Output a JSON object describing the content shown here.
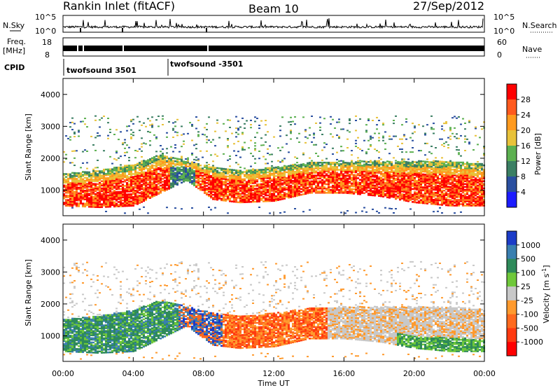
{
  "header": {
    "station": "Rankin Inlet (fitACF)",
    "beam": "Beam 10",
    "date": "27/Sep/2012"
  },
  "summary_panel": {
    "nsky_label": "N.Sky",
    "nsky_ticks": [
      "10^5",
      "10^0"
    ],
    "nsearch_label": "N.Search",
    "nsearch_ticks": [
      "10^5",
      "10^0"
    ],
    "freq_label": "Freq.",
    "freq_unit": "[MHz]",
    "freq_ticks": [
      "18",
      "8"
    ],
    "nave_label": "Nave",
    "nave_ticks": [
      "60",
      "0"
    ],
    "cpid_label": "CPID",
    "cpid_segments": [
      {
        "start_hour": 0.0,
        "label": "twofsound 3501"
      },
      {
        "start_hour": 6.0,
        "label": "twofsound -3501"
      }
    ]
  },
  "chart_data": [
    {
      "type": "heatmap",
      "quantity": "Power",
      "ylabel": "Slant Range [km]",
      "xlabel": "",
      "xlim": [
        0,
        24
      ],
      "ylim": [
        200,
        4500
      ],
      "y_ticks": [
        1000,
        2000,
        3000,
        4000
      ],
      "x_ticks": [
        0,
        4,
        8,
        12,
        16,
        20,
        24
      ],
      "colorbar": {
        "label": "Power [dB]",
        "ticks": [
          "28",
          "24",
          "20",
          "16",
          "12",
          "8",
          "4"
        ],
        "colors": [
          "#ff0000",
          "#ff5a1e",
          "#ff9a1e",
          "#e8c23a",
          "#5cb050",
          "#3b7f63",
          "#2a4fa0",
          "#1c1cff"
        ]
      },
      "main_band": [
        {
          "hour": 0,
          "low": 500,
          "high": 1500
        },
        {
          "hour": 2,
          "low": 450,
          "high": 1600
        },
        {
          "hour": 4,
          "low": 500,
          "high": 1800
        },
        {
          "hour": 5.5,
          "low": 900,
          "high": 2100
        },
        {
          "hour": 7,
          "low": 1300,
          "high": 1900
        },
        {
          "hour": 8.5,
          "low": 700,
          "high": 1700
        },
        {
          "hour": 10,
          "low": 600,
          "high": 1600
        },
        {
          "hour": 12,
          "low": 650,
          "high": 1700
        },
        {
          "hour": 14,
          "low": 900,
          "high": 1850
        },
        {
          "hour": 16,
          "low": 900,
          "high": 1900
        },
        {
          "hour": 18,
          "low": 800,
          "high": 1900
        },
        {
          "hour": 20,
          "low": 600,
          "high": 1900
        },
        {
          "hour": 22,
          "low": 500,
          "high": 1900
        },
        {
          "hour": 24,
          "low": 500,
          "high": 1800
        }
      ]
    },
    {
      "type": "heatmap",
      "quantity": "Velocity",
      "ylabel": "Slant Range [km]",
      "xlabel": "Time UT",
      "xlim": [
        0,
        24
      ],
      "ylim": [
        200,
        4500
      ],
      "y_ticks": [
        1000,
        2000,
        3000,
        4000
      ],
      "x_ticks": [
        0,
        4,
        8,
        12,
        16,
        20,
        24
      ],
      "x_tick_labels": [
        "00:00",
        "04:00",
        "08:00",
        "12:00",
        "16:00",
        "20:00",
        "00:00"
      ],
      "colorbar": {
        "label": "Velocity [m s^-1]",
        "ticks": [
          "1000",
          "500",
          "100",
          "25",
          "-25",
          "-100",
          "-500",
          "-1000"
        ],
        "colors": [
          "#1c3cc8",
          "#3a7fb0",
          "#2e8a5a",
          "#6fc83a",
          "#c8c8c8",
          "#ff9a2e",
          "#ff6a1e",
          "#ff3a10",
          "#ff0000"
        ]
      }
    }
  ]
}
